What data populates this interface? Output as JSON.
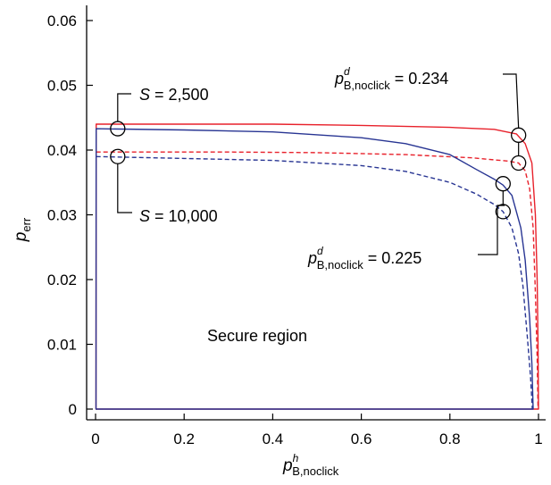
{
  "chart_data": {
    "type": "line",
    "title": "",
    "xlabel": {
      "main": "p",
      "sup": "h",
      "sub": "B,noclick"
    },
    "ylabel": {
      "main": "p",
      "sub": "err"
    },
    "xlim": [
      0,
      1
    ],
    "ylim": [
      0,
      0.06
    ],
    "x_ticks": [
      0,
      0.2,
      0.4,
      0.6,
      0.8,
      1
    ],
    "x_tick_labels": [
      "0",
      "0.2",
      "0.4",
      "0.6",
      "0.8",
      "1"
    ],
    "y_ticks": [
      0,
      0.01,
      0.02,
      0.03,
      0.04,
      0.05,
      0.06
    ],
    "y_tick_labels": [
      "0",
      "0.01",
      "0.02",
      "0.03",
      "0.04",
      "0.05",
      "0.06"
    ],
    "grid": false,
    "series": [
      {
        "color": "#e8212b",
        "dash": false,
        "points": [
          [
            0,
            0
          ],
          [
            0.001,
            0
          ],
          [
            0.0015,
            0.044
          ],
          [
            0.2,
            0.044
          ],
          [
            0.4,
            0.044
          ],
          [
            0.6,
            0.0438
          ],
          [
            0.8,
            0.0435
          ],
          [
            0.9,
            0.0432
          ],
          [
            0.95,
            0.0425
          ],
          [
            0.97,
            0.041
          ],
          [
            0.985,
            0.038
          ],
          [
            0.993,
            0.03
          ],
          [
            0.997,
            0.02
          ],
          [
            0.999,
            0.01
          ],
          [
            1.0,
            0
          ],
          [
            0,
            0
          ]
        ]
      },
      {
        "color": "#e8212b",
        "dash": true,
        "points": [
          [
            0.0015,
            0.0397
          ],
          [
            0.1,
            0.0397
          ],
          [
            0.3,
            0.0397
          ],
          [
            0.5,
            0.0396
          ],
          [
            0.7,
            0.0393
          ],
          [
            0.85,
            0.0388
          ],
          [
            0.93,
            0.0383
          ],
          [
            0.955,
            0.038
          ],
          [
            0.97,
            0.0368
          ],
          [
            0.98,
            0.034
          ],
          [
            0.988,
            0.028
          ],
          [
            0.993,
            0.018
          ],
          [
            0.997,
            0.008
          ],
          [
            0.999,
            0
          ]
        ]
      },
      {
        "color": "#283593",
        "dash": false,
        "points": [
          [
            0,
            0
          ],
          [
            0.001,
            0
          ],
          [
            0.0015,
            0.0433
          ],
          [
            0.2,
            0.0431
          ],
          [
            0.4,
            0.0428
          ],
          [
            0.6,
            0.0419
          ],
          [
            0.7,
            0.041
          ],
          [
            0.8,
            0.0393
          ],
          [
            0.86,
            0.037
          ],
          [
            0.9,
            0.0355
          ],
          [
            0.92,
            0.0346
          ],
          [
            0.94,
            0.033
          ],
          [
            0.96,
            0.028
          ],
          [
            0.97,
            0.023
          ],
          [
            0.98,
            0.014
          ],
          [
            0.985,
            0.007
          ],
          [
            0.988,
            0
          ],
          [
            0,
            0
          ]
        ]
      },
      {
        "color": "#283593",
        "dash": true,
        "points": [
          [
            0.0015,
            0.039
          ],
          [
            0.2,
            0.0387
          ],
          [
            0.4,
            0.0384
          ],
          [
            0.6,
            0.0376
          ],
          [
            0.7,
            0.0367
          ],
          [
            0.8,
            0.035
          ],
          [
            0.86,
            0.0332
          ],
          [
            0.9,
            0.0316
          ],
          [
            0.92,
            0.0305
          ],
          [
            0.94,
            0.028
          ],
          [
            0.955,
            0.024
          ],
          [
            0.965,
            0.019
          ],
          [
            0.975,
            0.011
          ],
          [
            0.982,
            0.005
          ],
          [
            0.986,
            0
          ]
        ]
      }
    ],
    "markers": [
      {
        "x": 0.05,
        "y": 0.0433
      },
      {
        "x": 0.05,
        "y": 0.039
      },
      {
        "x": 0.955,
        "y": 0.0423
      },
      {
        "x": 0.955,
        "y": 0.038
      },
      {
        "x": 0.92,
        "y": 0.0348
      },
      {
        "x": 0.92,
        "y": 0.0305
      }
    ],
    "annotations": {
      "s_top": {
        "lhs": "S",
        "rhs": " = 2,500"
      },
      "s_bottom": {
        "lhs": "S",
        "rhs": " = 10,000"
      },
      "p_top": {
        "main": "p",
        "sup": "d",
        "sub": "B,noclick",
        "rhs": " = 0.234"
      },
      "p_bottom": {
        "main": "p",
        "sup": "d",
        "sub": "B,noclick",
        "rhs": " = 0.225"
      },
      "region": "Secure region"
    }
  }
}
